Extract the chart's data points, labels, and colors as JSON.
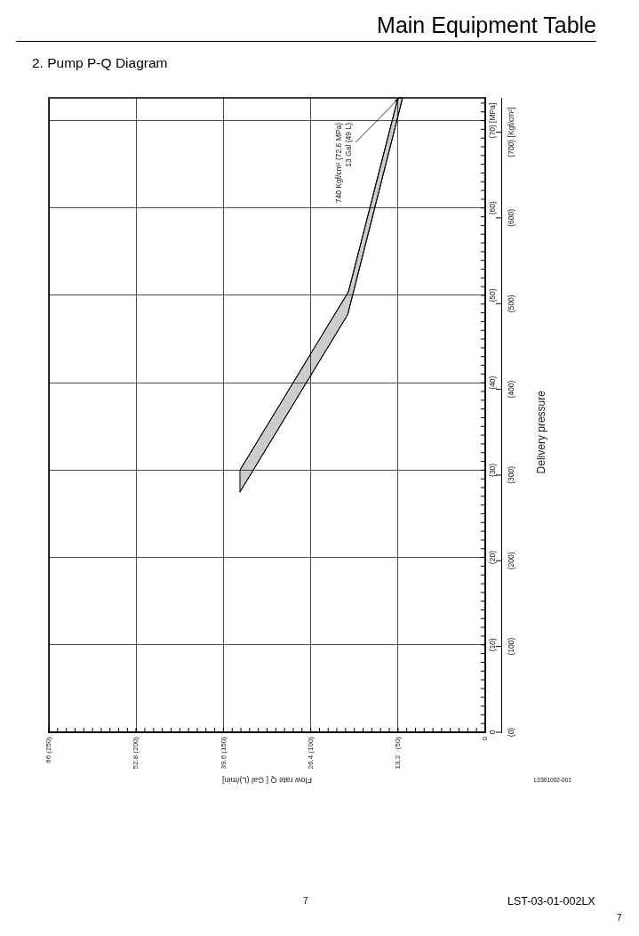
{
  "chart_data": {
    "type": "line",
    "title": "Main Equipment Table",
    "subtitle": "2. Pump P-Q Diagram",
    "xlabel": "Flow rate Q [ Gal (L)/min]",
    "y2label": "Delivery pressure",
    "series": [
      {
        "x": [
          13.2,
          20.7,
          37.1
        ],
        "values": [
          72.6,
          50.4,
          30.0
        ],
        "color": "#000000"
      },
      {
        "type": "area",
        "x": [
          12.5,
          20.8,
          37.1
        ],
        "values": [
          72.6,
          47.8,
          27.5
        ],
        "color": "#000000"
      }
    ],
    "xlim": [
      66,
      0
    ],
    "xticks": [
      {
        "value": 0,
        "label": null
      },
      13.2,
      26.4,
      39.6,
      52.8,
      66
    ],
    "x2lim": [
      250,
      0
    ],
    "x2ticks": [
      0,
      {
        "value": 5,
        "label": null
      },
      {
        "value": 10,
        "label": null
      },
      {
        "value": 15,
        "label": null
      },
      {
        "value": 20,
        "label": null
      },
      {
        "value": 25,
        "label": null
      },
      {
        "value": 30,
        "label": null
      },
      {
        "value": 35,
        "label": null
      },
      {
        "value": 40,
        "label": null
      },
      {
        "value": 45,
        "label": null
      },
      {
        "value": 50,
        "label": "(50)"
      },
      {
        "value": 55,
        "label": null
      },
      {
        "value": 60,
        "label": null
      },
      {
        "value": 65,
        "label": null
      },
      {
        "value": 70,
        "label": null
      },
      {
        "value": 75,
        "label": null
      },
      {
        "value": 80,
        "label": null
      },
      {
        "value": 85,
        "label": null
      },
      {
        "value": 90,
        "label": null
      },
      {
        "value": 95,
        "label": null
      },
      {
        "value": 100,
        "label": "(100)"
      },
      {
        "value": 105,
        "label": null
      },
      {
        "value": 110,
        "label": null
      },
      {
        "value": 115,
        "label": null
      },
      {
        "value": 120,
        "label": null
      },
      {
        "value": 125,
        "label": null
      },
      {
        "value": 130,
        "label": null
      },
      {
        "value": 135,
        "label": null
      },
      {
        "value": 140,
        "label": null
      },
      {
        "value": 145,
        "label": null
      },
      {
        "value": 150,
        "label": "(150)"
      },
      {
        "value": 155,
        "label": null
      },
      {
        "value": 160,
        "label": null
      },
      {
        "value": 165,
        "label": null
      },
      {
        "value": 170,
        "label": null
      },
      {
        "value": 175,
        "label": null
      },
      {
        "value": 180,
        "label": null
      },
      {
        "value": 185,
        "label": null
      },
      {
        "value": 190,
        "label": null
      },
      {
        "value": 195,
        "label": null
      },
      {
        "value": 200,
        "label": "(200)"
      },
      {
        "value": 205,
        "label": null
      },
      {
        "value": 210,
        "label": null
      },
      {
        "value": 215,
        "label": null
      },
      {
        "value": 220,
        "label": null
      },
      {
        "value": 225,
        "label": null
      },
      {
        "value": 230,
        "label": null
      },
      {
        "value": 235,
        "label": null
      },
      {
        "value": 240,
        "label": null
      },
      {
        "value": 245,
        "label": null
      },
      {
        "value": 250,
        "label": "(250)"
      }
    ],
    "ylim": [
      0,
      72.6
    ],
    "yticks": [
      0,
      {
        "value": 1,
        "label": null
      },
      {
        "value": 2,
        "label": null
      },
      {
        "value": 3,
        "label": null
      },
      {
        "value": 4,
        "label": null
      },
      {
        "value": 5,
        "label": null
      },
      {
        "value": 6,
        "label": null
      },
      {
        "value": 7,
        "label": null
      },
      {
        "value": 8,
        "label": null
      },
      {
        "value": 9,
        "label": null
      },
      {
        "value": 10,
        "label": "(10)"
      },
      {
        "value": 11,
        "label": null
      },
      {
        "value": 12,
        "label": null
      },
      {
        "value": 13,
        "label": null
      },
      {
        "value": 14,
        "label": null
      },
      {
        "value": 15,
        "label": null
      },
      {
        "value": 16,
        "label": null
      },
      {
        "value": 17,
        "label": null
      },
      {
        "value": 18,
        "label": null
      },
      {
        "value": 19,
        "label": null
      },
      {
        "value": 20,
        "label": "(20)"
      },
      {
        "value": 21,
        "label": null
      },
      {
        "value": 22,
        "label": null
      },
      {
        "value": 23,
        "label": null
      },
      {
        "value": 24,
        "label": null
      },
      {
        "value": 25,
        "label": null
      },
      {
        "value": 26,
        "label": null
      },
      {
        "value": 27,
        "label": null
      },
      {
        "value": 28,
        "label": null
      },
      {
        "value": 29,
        "label": null
      },
      {
        "value": 30,
        "label": "(30)"
      },
      {
        "value": 31,
        "label": null
      },
      {
        "value": 32,
        "label": null
      },
      {
        "value": 33,
        "label": null
      },
      {
        "value": 34,
        "label": null
      },
      {
        "value": 35,
        "label": null
      },
      {
        "value": 36,
        "label": null
      },
      {
        "value": 37,
        "label": null
      },
      {
        "value": 38,
        "label": null
      },
      {
        "value": 39,
        "label": null
      },
      {
        "value": 40,
        "label": "(40)"
      },
      {
        "value": 41,
        "label": null
      },
      {
        "value": 42,
        "label": null
      },
      {
        "value": 43,
        "label": null
      },
      {
        "value": 44,
        "label": null
      },
      {
        "value": 45,
        "label": null
      },
      {
        "value": 46,
        "label": null
      },
      {
        "value": 47,
        "label": null
      },
      {
        "value": 48,
        "label": null
      },
      {
        "value": 49,
        "label": null
      },
      {
        "value": 50,
        "label": "(50)"
      },
      {
        "value": 51,
        "label": null
      },
      {
        "value": 52,
        "label": null
      },
      {
        "value": 53,
        "label": null
      },
      {
        "value": 54,
        "label": null
      },
      {
        "value": 55,
        "label": null
      },
      {
        "value": 56,
        "label": null
      },
      {
        "value": 57,
        "label": null
      },
      {
        "value": 58,
        "label": null
      },
      {
        "value": 59,
        "label": null
      },
      {
        "value": 60,
        "label": "(60)"
      },
      {
        "value": 61,
        "label": null
      },
      {
        "value": 62,
        "label": null
      },
      {
        "value": 63,
        "label": null
      },
      {
        "value": 64,
        "label": null
      },
      {
        "value": 65,
        "label": null
      },
      {
        "value": 66,
        "label": null
      },
      {
        "value": 67,
        "label": null
      },
      {
        "value": 68,
        "label": null
      },
      {
        "value": 69,
        "label": null
      },
      {
        "value": 70,
        "label": "(70) [MPa]"
      },
      {
        "value": 71,
        "label": null
      },
      {
        "value": 72,
        "label": null
      }
    ],
    "y2lim": [
      0,
      740
    ],
    "y2ticks": [
      {
        "value": 0,
        "label": "(0)"
      },
      {
        "value": 100,
        "label": "(100)"
      },
      {
        "value": 200,
        "label": "(200)"
      },
      {
        "value": 300,
        "label": "(300)"
      },
      {
        "value": 400,
        "label": "(400)"
      },
      {
        "value": 500,
        "label": "(500)"
      },
      {
        "value": 600,
        "label": "(600)"
      },
      {
        "value": 700,
        "label": "(700) [Kgf/cm²]"
      }
    ],
    "grid": true,
    "marker": "none",
    "annotations": [
      {
        "text": "740 Kgf/cm² (72.6 MPa)\n13 Gal (49 L)",
        "x": 13,
        "y": 72.6
      },
      "L0301002-001",
      "7",
      "LST-03-01-002LX",
      "7"
    ]
  }
}
